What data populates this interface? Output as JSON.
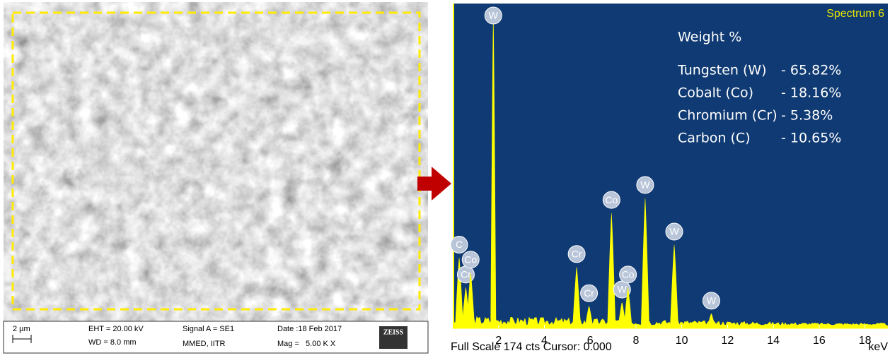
{
  "sem_panel": {
    "scale_bar": "2 µm",
    "eht": "EHT = 20.00 kV",
    "wd": "WD = 8.0 mm",
    "signal": "Signal A = SE1",
    "lab": "MMED, IITR",
    "date": "Date :18 Feb 2017",
    "mag": "Mag =   5.00 K X",
    "brand": "ZEISS"
  },
  "spectrum": {
    "title": "Spectrum 6",
    "footer": "Full Scale 174 cts Cursor: 0.000",
    "x_unit": "keV",
    "xlim": [
      0,
      19
    ],
    "ylim": [
      0,
      174
    ],
    "xticks": [
      2,
      4,
      6,
      8,
      10,
      12,
      14,
      16,
      18
    ],
    "peaks": [
      {
        "label": "C",
        "energy": 0.28,
        "counts": 38
      },
      {
        "label": "Cr",
        "energy": 0.57,
        "counts": 22
      },
      {
        "label": "Co",
        "energy": 0.78,
        "counts": 30
      },
      {
        "label": "W",
        "energy": 1.77,
        "counts": 168
      },
      {
        "label": "Cr",
        "energy": 5.41,
        "counts": 33
      },
      {
        "label": "Cr",
        "energy": 5.95,
        "counts": 12
      },
      {
        "label": "Co",
        "energy": 6.93,
        "counts": 62
      },
      {
        "label": "W",
        "energy": 7.39,
        "counts": 14
      },
      {
        "label": "Co",
        "energy": 7.65,
        "counts": 22
      },
      {
        "label": "W",
        "energy": 8.4,
        "counts": 70
      },
      {
        "label": "W",
        "energy": 9.67,
        "counts": 45
      },
      {
        "label": "W",
        "energy": 11.29,
        "counts": 8
      }
    ],
    "weight": {
      "heading": "Weight %",
      "rows": [
        {
          "element": "Tungsten (W)",
          "value": "- 65.82%"
        },
        {
          "element": "Cobalt (Co)",
          "value": "- 18.16%"
        },
        {
          "element": "Chromium (Cr)",
          "value": "- 5.38%"
        },
        {
          "element": "Carbon (C)",
          "value": "- 10.65%"
        }
      ]
    }
  }
}
